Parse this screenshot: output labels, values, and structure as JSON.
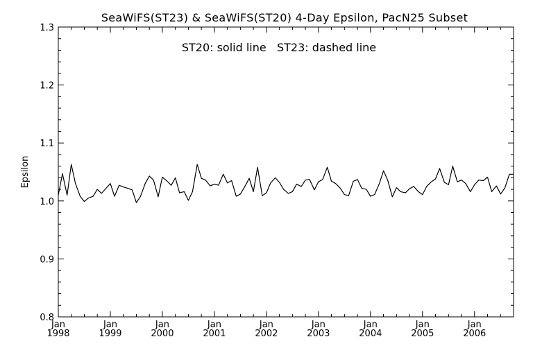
{
  "chart_data": {
    "type": "line",
    "title": "SeaWiFS(ST23) & SeaWiFS(ST20) 4-Day Epsilon, PacN25 Subset",
    "annotation": "ST20: solid line   ST23: dashed line",
    "xlabel": "",
    "ylabel": "Epsilon",
    "xlim": [
      1998.0,
      2006.75
    ],
    "ylim": [
      0.8,
      1.3
    ],
    "y_ticks": [
      "0.8",
      "0.9",
      "1.0",
      "1.1",
      "1.2",
      "1.3"
    ],
    "x_tick_labels": [
      {
        "month": "Jan",
        "year": "1998"
      },
      {
        "month": "Jan",
        "year": "1999"
      },
      {
        "month": "Jan",
        "year": "2000"
      },
      {
        "month": "Jan",
        "year": "2001"
      },
      {
        "month": "Jan",
        "year": "2002"
      },
      {
        "month": "Jan",
        "year": "2003"
      },
      {
        "month": "Jan",
        "year": "2004"
      },
      {
        "month": "Jan",
        "year": "2005"
      },
      {
        "month": "Jan",
        "year": "2006"
      }
    ],
    "grid": false,
    "series": [
      {
        "name": "ST20",
        "style": "solid",
        "color": "#000000",
        "x": [
          1998.0,
          1998.08,
          1998.17,
          1998.25,
          1998.33,
          1998.42,
          1998.5,
          1998.58,
          1998.67,
          1998.75,
          1998.83,
          1998.92,
          1999.0,
          1999.08,
          1999.17,
          1999.25,
          1999.33,
          1999.42,
          1999.5,
          1999.58,
          1999.67,
          1999.75,
          1999.83,
          1999.92,
          2000.0,
          2000.08,
          2000.17,
          2000.25,
          2000.33,
          2000.42,
          2000.5,
          2000.58,
          2000.67,
          2000.75,
          2000.83,
          2000.92,
          2001.0,
          2001.08,
          2001.17,
          2001.25,
          2001.33,
          2001.42,
          2001.5,
          2001.58,
          2001.67,
          2001.75,
          2001.83,
          2001.92,
          2002.0,
          2002.08,
          2002.17,
          2002.25,
          2002.33,
          2002.42,
          2002.5,
          2002.58,
          2002.67,
          2002.75,
          2002.83,
          2002.92,
          2003.0,
          2003.08,
          2003.17,
          2003.25,
          2003.33,
          2003.42,
          2003.5,
          2003.58,
          2003.67,
          2003.75,
          2003.83,
          2003.92,
          2004.0,
          2004.08,
          2004.17,
          2004.25,
          2004.33,
          2004.42,
          2004.5,
          2004.58,
          2004.67,
          2004.75,
          2004.83,
          2004.92,
          2005.0,
          2005.08,
          2005.17,
          2005.25,
          2005.33,
          2005.42,
          2005.5,
          2005.58,
          2005.67,
          2005.75,
          2005.83,
          2005.92,
          2006.0,
          2006.08,
          2006.17,
          2006.25,
          2006.33,
          2006.42,
          2006.5,
          2006.58,
          2006.67,
          2006.75
        ],
        "values": [
          1.01,
          1.047,
          1.01,
          1.063,
          1.03,
          1.008,
          0.999,
          1.005,
          1.008,
          1.02,
          1.013,
          1.022,
          1.03,
          1.008,
          1.027,
          1.024,
          1.022,
          1.019,
          0.997,
          1.008,
          1.03,
          1.043,
          1.036,
          1.007,
          1.041,
          1.035,
          1.027,
          1.04,
          1.014,
          1.016,
          1.001,
          1.016,
          1.063,
          1.039,
          1.036,
          1.026,
          1.029,
          1.027,
          1.046,
          1.031,
          1.035,
          1.008,
          1.012,
          1.024,
          1.039,
          1.016,
          1.058,
          1.009,
          1.014,
          1.031,
          1.04,
          1.032,
          1.02,
          1.013,
          1.016,
          1.029,
          1.025,
          1.036,
          1.037,
          1.019,
          1.033,
          1.037,
          1.058,
          1.034,
          1.03,
          1.022,
          1.011,
          1.009,
          1.034,
          1.037,
          1.022,
          1.02,
          1.008,
          1.011,
          1.03,
          1.052,
          1.036,
          1.007,
          1.023,
          1.016,
          1.014,
          1.021,
          1.025,
          1.016,
          1.011,
          1.025,
          1.033,
          1.038,
          1.056,
          1.032,
          1.028,
          1.06,
          1.033,
          1.036,
          1.03,
          1.016,
          1.028,
          1.036,
          1.035,
          1.041,
          1.016,
          1.026,
          1.012,
          1.022,
          1.046,
          1.046
        ]
      }
    ]
  }
}
